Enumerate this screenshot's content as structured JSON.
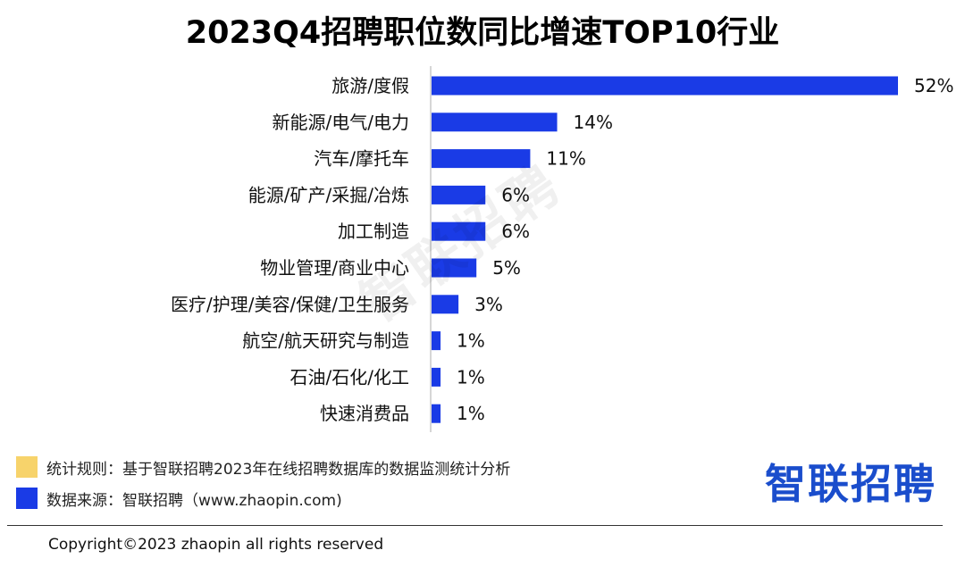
{
  "chart_data": {
    "type": "bar",
    "orientation": "horizontal",
    "title": "2023Q4招聘职位数同比增速TOP10行业",
    "categories": [
      "旅游/度假",
      "新能源/电气/电力",
      "汽车/摩托车",
      "能源/矿产/采掘/冶炼",
      "加工制造",
      "物业管理/商业中心",
      "医疗/护理/美容/保健/卫生服务",
      "航空/航天研究与制造",
      "石油/石化/化工",
      "快速消费品"
    ],
    "values": [
      52,
      14,
      11,
      6,
      6,
      5,
      3,
      1,
      1,
      1
    ],
    "value_labels": [
      "52%",
      "14%",
      "11%",
      "6%",
      "6%",
      "5%",
      "3%",
      "1%",
      "1%",
      "1%"
    ],
    "unit": "%",
    "xlim": [
      0,
      52
    ],
    "bar_color": "#1a3be6",
    "grid": false
  },
  "watermark": "智联招聘",
  "legend": [
    {
      "text": "统计规则：基于智联招聘2023年在线招聘数据库的数据监测统计分析",
      "color": "#f7d36b"
    },
    {
      "text": "数据来源：智联招聘（www.zhaopin.com)",
      "color": "#1a3be6"
    }
  ],
  "logo": "智联招聘",
  "copyright": "Copyright©2023 zhaopin all rights reserved"
}
